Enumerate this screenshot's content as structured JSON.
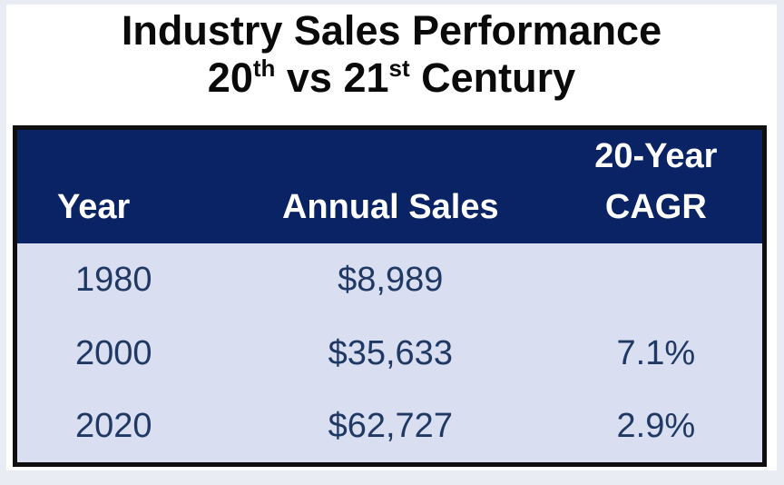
{
  "title": {
    "line1": "Industry Sales Performance",
    "line2": {
      "part1": "20",
      "sup1": "th",
      "part2": " vs 21",
      "sup2": "st",
      "part3": " Century"
    }
  },
  "table": {
    "header": {
      "year": "Year",
      "annual_sales": "Annual Sales",
      "cagr_line1": "20-Year",
      "cagr_line2": "CAGR"
    },
    "rows": [
      {
        "year": "1980",
        "annual_sales": "$8,989",
        "cagr": ""
      },
      {
        "year": "2000",
        "annual_sales": "$35,633",
        "cagr": "7.1%"
      },
      {
        "year": "2020",
        "annual_sales": "$62,727",
        "cagr": "2.9%"
      }
    ]
  },
  "colors": {
    "header_background": "#0a2365",
    "body_background": "#d9def0",
    "body_text": "#1f3864",
    "table_border": "#0f0f0f",
    "frame": "#e9ecf3",
    "panel_background": "#ffffff",
    "title_text": "#0a0a0a",
    "header_text": "#ffffff"
  },
  "chart_data": {
    "type": "table",
    "title": "Industry Sales Performance 20th vs 21st Century",
    "columns": [
      "Year",
      "Annual Sales",
      "20-Year CAGR"
    ],
    "rows": [
      [
        "1980",
        "$8,989",
        ""
      ],
      [
        "2000",
        "$35,633",
        "7.1%"
      ],
      [
        "2020",
        "$62,727",
        "2.9%"
      ]
    ],
    "categories": [
      1980,
      2000,
      2020
    ],
    "series": [
      {
        "name": "Annual Sales",
        "values": [
          8989,
          35633,
          62727
        ]
      },
      {
        "name": "20-Year CAGR (%)",
        "values": [
          null,
          7.1,
          2.9
        ]
      }
    ]
  }
}
